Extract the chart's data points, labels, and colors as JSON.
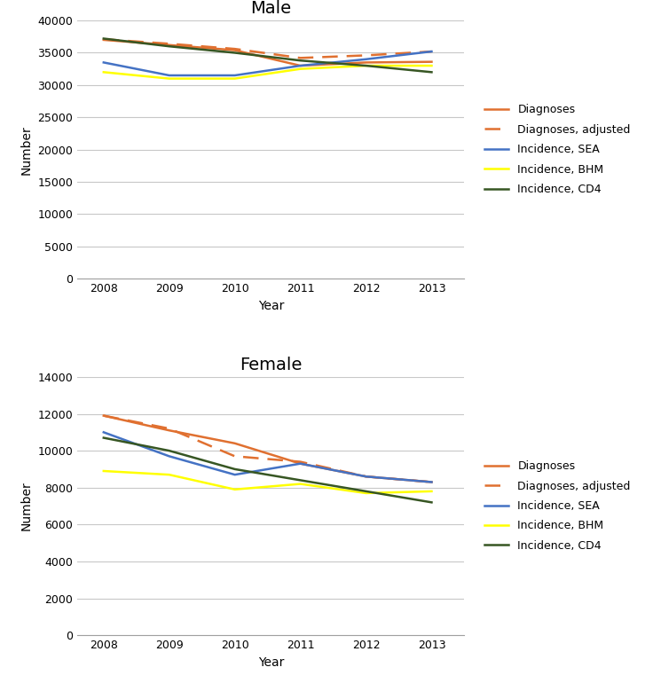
{
  "years": [
    2008,
    2009,
    2010,
    2011,
    2012,
    2013
  ],
  "male": {
    "diagnoses": [
      37000,
      36200,
      35400,
      33000,
      33500,
      33600
    ],
    "diagnoses_adjusted": [
      37100,
      36400,
      35600,
      34200,
      34600,
      35200
    ],
    "incidence_sea": [
      33500,
      31500,
      31500,
      33000,
      34000,
      35200
    ],
    "incidence_bhm": [
      32000,
      31000,
      31000,
      32500,
      33000,
      33000
    ],
    "incidence_cd4": [
      37200,
      36000,
      35000,
      33800,
      33000,
      32000
    ]
  },
  "female": {
    "diagnoses": [
      11900,
      11100,
      10400,
      9300,
      8600,
      8300
    ],
    "diagnoses_adjusted": [
      11900,
      11200,
      9700,
      9400,
      8600,
      8300
    ],
    "incidence_sea": [
      11000,
      9700,
      8700,
      9300,
      8600,
      8300
    ],
    "incidence_bhm": [
      8900,
      8700,
      7900,
      8200,
      7700,
      7800
    ],
    "incidence_cd4": [
      10700,
      10000,
      9000,
      8400,
      7800,
      7200
    ]
  },
  "colors": {
    "diagnoses": "#E07030",
    "diagnoses_adjusted": "#E07030",
    "incidence_sea": "#4472C4",
    "incidence_bhm": "#FFFF00",
    "incidence_cd4": "#375623"
  },
  "male_ylim": [
    0,
    40000
  ],
  "male_yticks": [
    0,
    5000,
    10000,
    15000,
    20000,
    25000,
    30000,
    35000,
    40000
  ],
  "female_ylim": [
    0,
    14000
  ],
  "female_yticks": [
    0,
    2000,
    4000,
    6000,
    8000,
    10000,
    12000,
    14000
  ],
  "xlabel": "Year",
  "ylabel": "Number",
  "title_male": "Male",
  "title_female": "Female",
  "legend_labels": [
    "Diagnoses",
    "Diagnoses, adjusted",
    "Incidence, SEA",
    "Incidence, BHM",
    "Incidence, CD4"
  ],
  "title_fontsize": 14,
  "label_fontsize": 10,
  "tick_fontsize": 9,
  "legend_fontsize": 9
}
